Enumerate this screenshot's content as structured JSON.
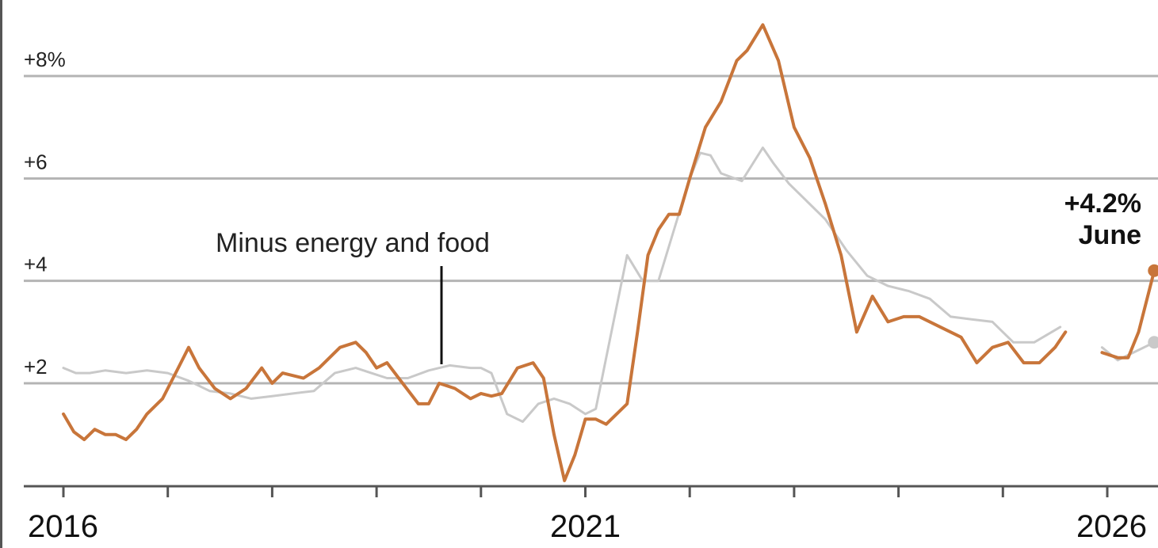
{
  "chart_data": {
    "type": "line",
    "x_unit": "year",
    "xlim": [
      2016,
      2026.45
    ],
    "ylim": [
      -1,
      8.8
    ],
    "yticks": [
      {
        "value": 8,
        "label": "+8%"
      },
      {
        "value": 6,
        "label": "+6"
      },
      {
        "value": 4,
        "label": "+4"
      },
      {
        "value": 2,
        "label": "+2"
      }
    ],
    "xticks_major": [
      {
        "value": 2016,
        "label": "2016"
      },
      {
        "value": 2021,
        "label": "2021"
      },
      {
        "value": 2026,
        "label": "2026"
      }
    ],
    "xticks_minor": [
      2016,
      2017,
      2018,
      2019,
      2020,
      2021,
      2022,
      2023,
      2024,
      2025,
      2026
    ],
    "grid": true,
    "series": [
      {
        "name": "",
        "color": "#c9c9c9",
        "segments": [
          [
            [
              2016.0,
              2.3
            ],
            [
              2016.12,
              2.2
            ],
            [
              2016.25,
              2.2
            ],
            [
              2016.4,
              2.25
            ],
            [
              2016.6,
              2.2
            ],
            [
              2016.8,
              2.25
            ],
            [
              2017.0,
              2.2
            ],
            [
              2017.2,
              2.05
            ],
            [
              2017.4,
              1.85
            ],
            [
              2017.6,
              1.8
            ],
            [
              2017.8,
              1.7
            ],
            [
              2018.0,
              1.75
            ],
            [
              2018.2,
              1.8
            ],
            [
              2018.4,
              1.85
            ],
            [
              2018.6,
              2.2
            ],
            [
              2018.8,
              2.3
            ],
            [
              2018.95,
              2.2
            ],
            [
              2019.1,
              2.1
            ],
            [
              2019.3,
              2.1
            ],
            [
              2019.5,
              2.25
            ],
            [
              2019.7,
              2.35
            ],
            [
              2019.9,
              2.3
            ],
            [
              2020.0,
              2.3
            ],
            [
              2020.1,
              2.2
            ],
            [
              2020.25,
              1.4
            ],
            [
              2020.4,
              1.25
            ],
            [
              2020.55,
              1.6
            ],
            [
              2020.7,
              1.7
            ],
            [
              2020.85,
              1.6
            ],
            [
              2021.0,
              1.4
            ],
            [
              2021.1,
              1.5
            ],
            [
              2021.25,
              3.0
            ],
            [
              2021.4,
              4.5
            ],
            [
              2021.55,
              4.0
            ],
            [
              2021.7,
              4.0
            ],
            [
              2021.85,
              5.0
            ],
            [
              2022.0,
              6.0
            ],
            [
              2022.1,
              6.5
            ],
            [
              2022.2,
              6.45
            ],
            [
              2022.3,
              6.1
            ],
            [
              2022.5,
              5.95
            ],
            [
              2022.7,
              6.6
            ],
            [
              2022.8,
              6.3
            ],
            [
              2022.95,
              5.9
            ],
            [
              2023.1,
              5.6
            ],
            [
              2023.3,
              5.2
            ],
            [
              2023.5,
              4.6
            ],
            [
              2023.7,
              4.1
            ],
            [
              2023.9,
              3.9
            ],
            [
              2024.1,
              3.8
            ],
            [
              2024.3,
              3.65
            ],
            [
              2024.5,
              3.3
            ],
            [
              2024.7,
              3.25
            ],
            [
              2024.9,
              3.2
            ],
            [
              2025.1,
              2.8
            ],
            [
              2025.3,
              2.8
            ],
            [
              2025.55,
              3.1
            ]
          ],
          [
            [
              2025.95,
              2.7
            ],
            [
              2026.1,
              2.45
            ],
            [
              2026.2,
              2.55
            ],
            [
              2026.3,
              2.65
            ],
            [
              2026.45,
              2.8
            ]
          ]
        ]
      },
      {
        "name": "",
        "color": "#c8753a",
        "segments": [
          [
            [
              2016.0,
              1.4
            ],
            [
              2016.1,
              1.05
            ],
            [
              2016.2,
              0.9
            ],
            [
              2016.3,
              1.1
            ],
            [
              2016.4,
              1.0
            ],
            [
              2016.5,
              1.0
            ],
            [
              2016.6,
              0.9
            ],
            [
              2016.7,
              1.1
            ],
            [
              2016.8,
              1.4
            ],
            [
              2016.95,
              1.7
            ],
            [
              2017.1,
              2.3
            ],
            [
              2017.2,
              2.7
            ],
            [
              2017.3,
              2.3
            ],
            [
              2017.45,
              1.9
            ],
            [
              2017.6,
              1.7
            ],
            [
              2017.75,
              1.9
            ],
            [
              2017.9,
              2.3
            ],
            [
              2018.0,
              2.0
            ],
            [
              2018.1,
              2.2
            ],
            [
              2018.3,
              2.1
            ],
            [
              2018.45,
              2.3
            ],
            [
              2018.65,
              2.7
            ],
            [
              2018.8,
              2.8
            ],
            [
              2018.9,
              2.6
            ],
            [
              2019.0,
              2.3
            ],
            [
              2019.1,
              2.4
            ],
            [
              2019.25,
              2.0
            ],
            [
              2019.4,
              1.6
            ],
            [
              2019.5,
              1.6
            ],
            [
              2019.6,
              2.0
            ],
            [
              2019.75,
              1.9
            ],
            [
              2019.9,
              1.7
            ],
            [
              2020.0,
              1.8
            ],
            [
              2020.1,
              1.75
            ],
            [
              2020.2,
              1.8
            ],
            [
              2020.35,
              2.3
            ],
            [
              2020.5,
              2.4
            ],
            [
              2020.6,
              2.1
            ],
            [
              2020.7,
              1.0
            ],
            [
              2020.8,
              0.1
            ],
            [
              2020.9,
              0.6
            ],
            [
              2021.0,
              1.3
            ],
            [
              2021.1,
              1.3
            ],
            [
              2021.2,
              1.2
            ],
            [
              2021.3,
              1.4
            ],
            [
              2021.4,
              1.6
            ],
            [
              2021.5,
              3.0
            ],
            [
              2021.6,
              4.5
            ],
            [
              2021.7,
              5.0
            ],
            [
              2021.8,
              5.3
            ],
            [
              2021.9,
              5.3
            ],
            [
              2022.0,
              6.0
            ],
            [
              2022.15,
              7.0
            ],
            [
              2022.3,
              7.5
            ],
            [
              2022.45,
              8.3
            ],
            [
              2022.55,
              8.5
            ],
            [
              2022.7,
              9.0
            ],
            [
              2022.85,
              8.3
            ],
            [
              2023.0,
              7.0
            ],
            [
              2023.15,
              6.4
            ],
            [
              2023.3,
              5.5
            ],
            [
              2023.45,
              4.5
            ],
            [
              2023.6,
              3.0
            ],
            [
              2023.75,
              3.7
            ],
            [
              2023.9,
              3.2
            ],
            [
              2024.05,
              3.3
            ],
            [
              2024.2,
              3.3
            ],
            [
              2024.4,
              3.1
            ],
            [
              2024.6,
              2.9
            ],
            [
              2024.75,
              2.4
            ],
            [
              2024.9,
              2.7
            ],
            [
              2025.05,
              2.8
            ],
            [
              2025.2,
              2.4
            ],
            [
              2025.35,
              2.4
            ],
            [
              2025.5,
              2.7
            ],
            [
              2025.6,
              3.0
            ]
          ],
          [
            [
              2025.95,
              2.6
            ],
            [
              2026.1,
              2.5
            ],
            [
              2026.2,
              2.5
            ],
            [
              2026.3,
              3.0
            ],
            [
              2026.45,
              4.2
            ]
          ]
        ]
      }
    ],
    "annotations": [
      {
        "text": "Minus energy and food"
      }
    ],
    "end_label": {
      "value": "+4.2%",
      "month": "June"
    }
  }
}
